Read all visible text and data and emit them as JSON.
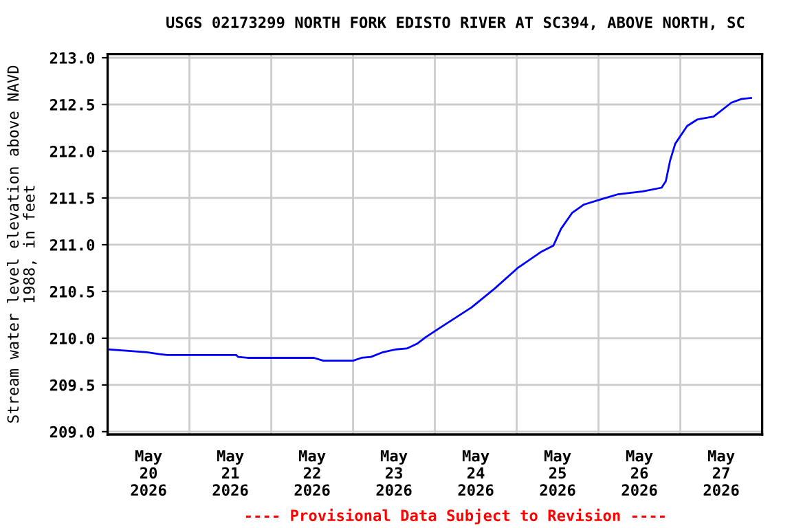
{
  "chart_data": {
    "type": "line",
    "title": "USGS 02173299 NORTH FORK EDISTO RIVER AT SC394, ABOVE NORTH, SC",
    "ylabel": "Stream water level elevation above NAVD\n1988, in feet",
    "annotations": [
      "---- Provisional Data Subject to Revision ----"
    ],
    "x": [
      "2026-05-20T00:00",
      "2026-05-20T07:30",
      "2026-05-20T11:30",
      "2026-05-20T15:15",
      "2026-05-20T17:30",
      "2026-05-21T13:45",
      "2026-05-21T14:15",
      "2026-05-21T17:00",
      "2026-05-22T12:30",
      "2026-05-22T15:15",
      "2026-05-23T00:00",
      "2026-05-23T02:30",
      "2026-05-23T05:15",
      "2026-05-23T08:45",
      "2026-05-23T12:30",
      "2026-05-23T15:45",
      "2026-05-23T18:45",
      "2026-05-23T21:15",
      "2026-05-24T01:00",
      "2026-05-24T10:45",
      "2026-05-24T17:30",
      "2026-05-25T00:15",
      "2026-05-25T07:00",
      "2026-05-25T10:45",
      "2026-05-25T13:00",
      "2026-05-25T16:15",
      "2026-05-25T19:45",
      "2026-05-26T00:15",
      "2026-05-26T05:45",
      "2026-05-26T13:00",
      "2026-05-26T18:30",
      "2026-05-26T19:45",
      "2026-05-26T21:00",
      "2026-05-26T22:30",
      "2026-05-27T02:00",
      "2026-05-27T05:00",
      "2026-05-27T09:45",
      "2026-05-27T15:00",
      "2026-05-27T18:00",
      "2026-05-27T20:45"
    ],
    "series": [
      {
        "color": "#0000ff",
        "values": [
          209.88,
          209.86,
          209.85,
          209.83,
          209.82,
          209.82,
          209.8,
          209.79,
          209.79,
          209.76,
          209.76,
          209.79,
          209.8,
          209.85,
          209.88,
          209.89,
          209.94,
          210.01,
          210.1,
          210.33,
          210.53,
          210.75,
          210.92,
          210.99,
          211.17,
          211.34,
          211.43,
          211.48,
          211.54,
          211.57,
          211.61,
          211.68,
          211.9,
          212.08,
          212.27,
          212.34,
          212.37,
          212.52,
          212.56,
          212.57
        ]
      }
    ],
    "xlim": [
      "2026-05-20T00:00",
      "2026-05-28T00:00"
    ],
    "xticks": [
      {
        "value": "2026-05-21T00:00",
        "label": null
      },
      {
        "value": "2026-05-22T00:00",
        "label": null
      },
      {
        "value": "2026-05-23T00:00",
        "label": null
      },
      {
        "value": "2026-05-24T00:00",
        "label": null
      },
      {
        "value": "2026-05-25T00:00",
        "label": null
      },
      {
        "value": "2026-05-26T00:00",
        "label": null
      },
      {
        "value": "2026-05-27T00:00",
        "label": null
      },
      {
        "value": "2026-05-20T12:00",
        "label": "May\n20\n2026"
      },
      {
        "value": "2026-05-21T12:00",
        "label": "May\n21\n2026"
      },
      {
        "value": "2026-05-22T12:00",
        "label": "May\n22\n2026"
      },
      {
        "value": "2026-05-23T12:00",
        "label": "May\n23\n2026"
      },
      {
        "value": "2026-05-24T12:00",
        "label": "May\n24\n2026"
      },
      {
        "value": "2026-05-25T12:00",
        "label": "May\n25\n2026"
      },
      {
        "value": "2026-05-26T12:00",
        "label": "May\n26\n2026"
      },
      {
        "value": "2026-05-27T12:00",
        "label": "May\n27\n2026"
      }
    ],
    "ylim": [
      208.97,
      213.04
    ],
    "yticks": [
      {
        "value": 209,
        "label": "209.0"
      },
      {
        "value": 209.5,
        "label": "209.5"
      },
      {
        "value": 210,
        "label": "210.0"
      },
      {
        "value": 210.5,
        "label": "210.5"
      },
      {
        "value": 211,
        "label": "211.0"
      },
      {
        "value": 211.5,
        "label": "211.5"
      },
      {
        "value": 212,
        "label": "212.0"
      },
      {
        "value": 212.5,
        "label": "212.5"
      },
      {
        "value": 213,
        "label": "213.0"
      }
    ],
    "grid": true,
    "legend": false
  }
}
